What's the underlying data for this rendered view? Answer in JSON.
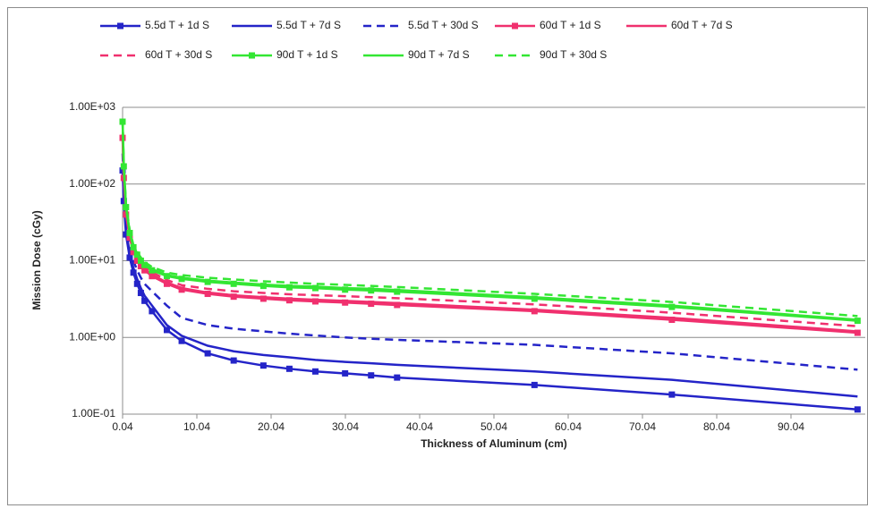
{
  "chart_data": {
    "type": "line",
    "xlabel": "Thickness of Aluminum (cm)",
    "ylabel": "Mission Dose (cGy)",
    "log_y": true,
    "grid": true,
    "legend": "top",
    "xlim": [
      0.04,
      100.04
    ],
    "xticks": [
      0.04,
      10.04,
      20.04,
      30.04,
      40.04,
      50.04,
      60.04,
      70.04,
      80.04,
      90.04
    ],
    "ylim": [
      0.1,
      1000
    ],
    "yticks": [
      {
        "value": 0.1,
        "label": "1.00E-01"
      },
      {
        "value": 1,
        "label": "1.00E+00"
      },
      {
        "value": 10,
        "label": "1.00E+01"
      },
      {
        "value": 100,
        "label": "1.00E+02"
      },
      {
        "value": 1000,
        "label": "1.00E+03"
      }
    ],
    "x": [
      0.04,
      0.2,
      0.5,
      1,
      1.5,
      2,
      2.5,
      3,
      4,
      6,
      8,
      11.5,
      15,
      19,
      22.5,
      26,
      30,
      33.5,
      37,
      55.5,
      74,
      99
    ],
    "series": [
      {
        "name": "5.5d T + 1d S",
        "color": "#2424c8",
        "dash": false,
        "marker": "square",
        "values": [
          150,
          60,
          22,
          11,
          7,
          5,
          3.8,
          3,
          2.2,
          1.25,
          0.9,
          0.62,
          0.5,
          0.43,
          0.39,
          0.36,
          0.34,
          0.32,
          0.3,
          0.24,
          0.18,
          0.115
        ]
      },
      {
        "name": "5.5d T + 7d S",
        "color": "#2424c8",
        "dash": false,
        "marker": "none",
        "values": [
          180,
          70,
          25,
          12.5,
          8,
          5.8,
          4.4,
          3.5,
          2.6,
          1.45,
          1.05,
          0.78,
          0.66,
          0.59,
          0.55,
          0.51,
          0.48,
          0.46,
          0.44,
          0.36,
          0.28,
          0.17
        ]
      },
      {
        "name": "5.5d T + 30d S",
        "color": "#2424c8",
        "dash": true,
        "marker": "none",
        "values": [
          250,
          90,
          30,
          15,
          10,
          7.5,
          6,
          5,
          4,
          2.6,
          1.8,
          1.45,
          1.3,
          1.2,
          1.12,
          1.06,
          1.0,
          0.96,
          0.93,
          0.8,
          0.62,
          0.38
        ]
      },
      {
        "name": "60d T + 1d S",
        "color": "#f0306e",
        "dash": false,
        "marker": "square",
        "values": [
          400,
          120,
          40,
          20,
          13,
          10,
          8.5,
          7.5,
          6.3,
          5,
          4.2,
          3.7,
          3.4,
          3.2,
          3.05,
          2.95,
          2.85,
          2.75,
          2.65,
          2.2,
          1.7,
          1.15
        ]
      },
      {
        "name": "60d T + 7d S",
        "color": "#f0306e",
        "dash": false,
        "marker": "none",
        "values": [
          420,
          125,
          42,
          21,
          13.5,
          10.5,
          9,
          7.8,
          6.6,
          5.2,
          4.4,
          3.85,
          3.55,
          3.35,
          3.2,
          3.1,
          3.0,
          2.9,
          2.8,
          2.3,
          1.8,
          1.2
        ]
      },
      {
        "name": "60d T + 30d S",
        "color": "#f0306e",
        "dash": true,
        "marker": "none",
        "values": [
          450,
          135,
          45,
          22,
          14.5,
          11,
          9.5,
          8.3,
          7.1,
          5.6,
          4.8,
          4.3,
          4.0,
          3.8,
          3.65,
          3.55,
          3.45,
          3.35,
          3.25,
          2.7,
          2.1,
          1.4
        ]
      },
      {
        "name": "90d T + 1d S",
        "color": "#33e633",
        "dash": false,
        "marker": "square",
        "values": [
          650,
          170,
          50,
          23,
          15,
          12,
          10,
          8.8,
          7.5,
          6.3,
          5.8,
          5.3,
          5.0,
          4.7,
          4.5,
          4.4,
          4.2,
          4.1,
          3.95,
          3.2,
          2.5,
          1.65
        ]
      },
      {
        "name": "90d T + 7d S",
        "color": "#33e633",
        "dash": false,
        "marker": "none",
        "values": [
          670,
          175,
          52,
          24,
          15.5,
          12.5,
          10.4,
          9.1,
          7.8,
          6.5,
          6.0,
          5.5,
          5.2,
          4.9,
          4.7,
          4.6,
          4.4,
          4.3,
          4.15,
          3.35,
          2.6,
          1.7
        ]
      },
      {
        "name": "90d T + 30d S",
        "color": "#33e633",
        "dash": true,
        "marker": "none",
        "values": [
          700,
          180,
          55,
          25,
          16,
          13,
          11,
          9.6,
          8.3,
          7.0,
          6.5,
          6.0,
          5.7,
          5.4,
          5.2,
          5.0,
          4.85,
          4.7,
          4.55,
          3.7,
          2.9,
          1.9
        ]
      }
    ]
  }
}
